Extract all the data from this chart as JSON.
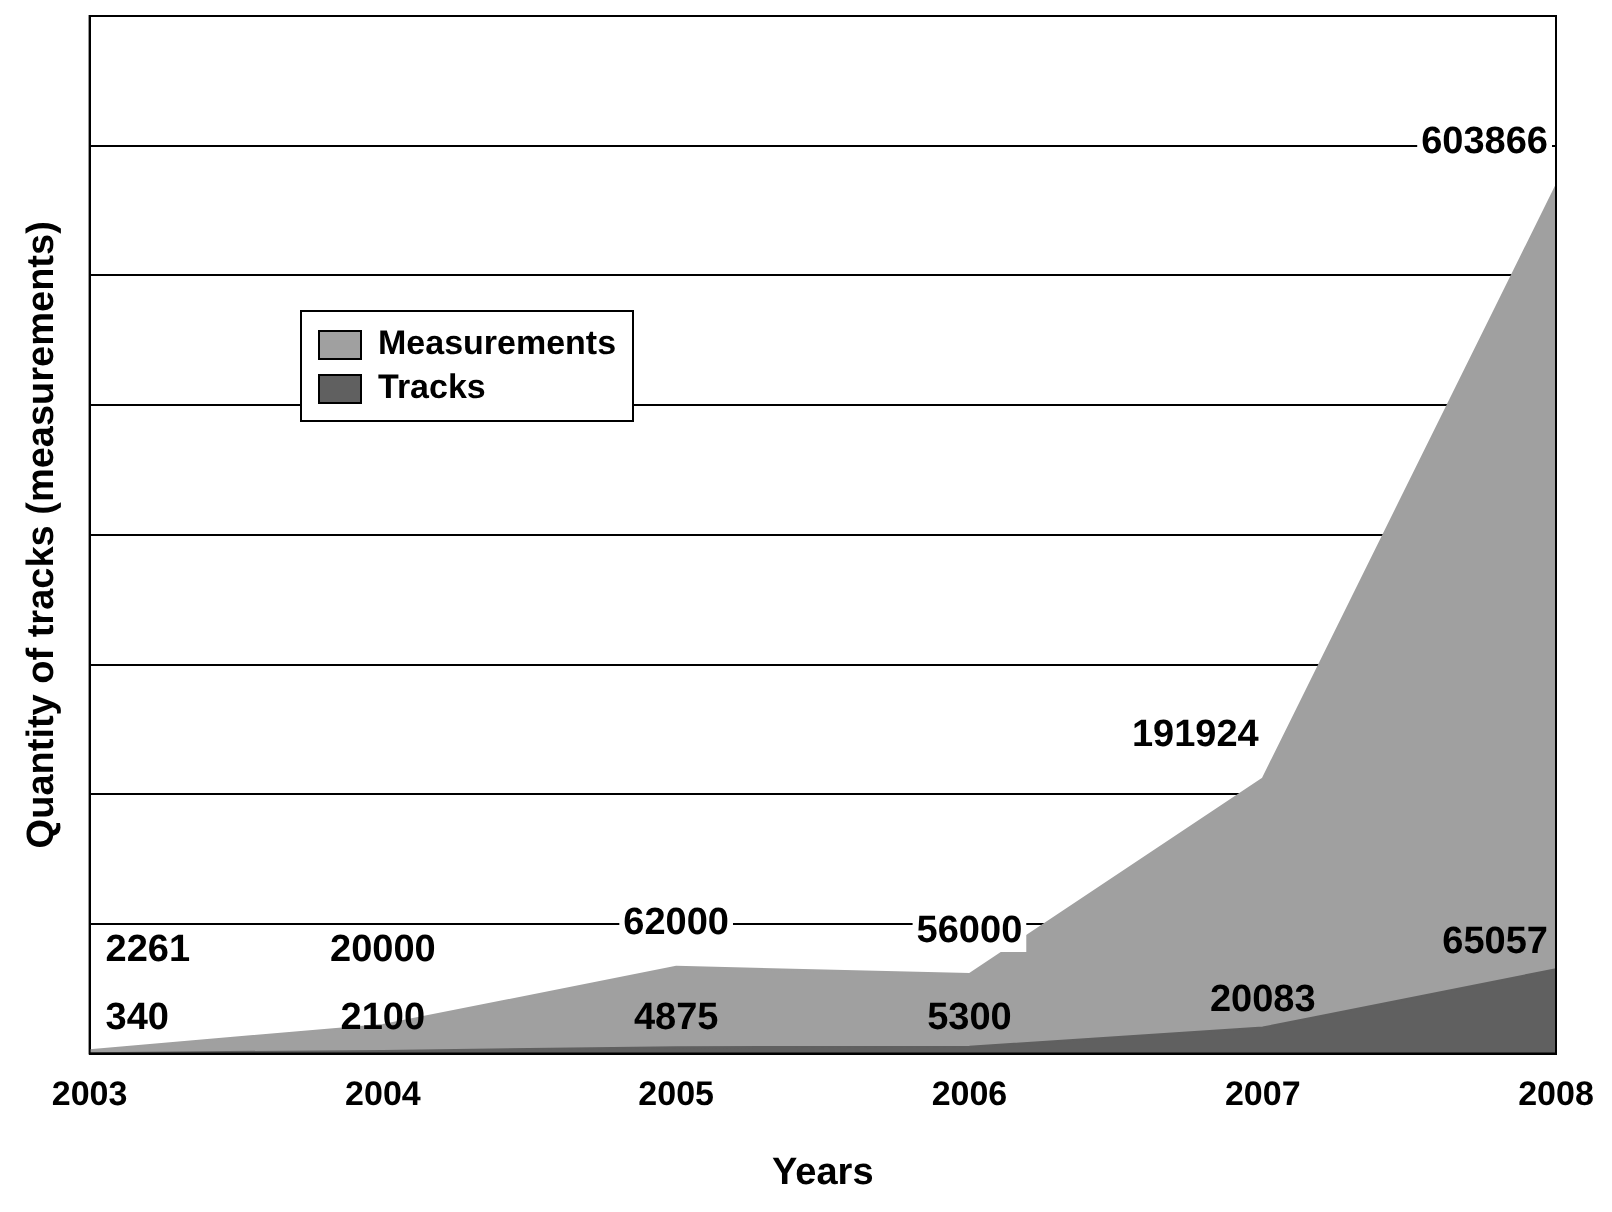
{
  "chart_data": {
    "type": "area",
    "xlabel": "Years",
    "ylabel": "Quantity of tracks (measurements)",
    "categories": [
      "2003",
      "2004",
      "2005",
      "2006",
      "2007",
      "2008"
    ],
    "series": [
      {
        "name": "Tracks",
        "color": "#606060",
        "values": [
          340,
          2100,
          4875,
          5300,
          20083,
          65057
        ]
      },
      {
        "name": "Measurements",
        "color": "#a0a0a0",
        "values": [
          2261,
          20000,
          62000,
          56000,
          191924,
          603866
        ]
      }
    ],
    "stacked": true,
    "data_labels": true,
    "ylim": [
      0,
      800000
    ],
    "yticks": [
      {
        "value": 0,
        "label": null
      },
      {
        "value": 100000,
        "label": null
      },
      {
        "value": 200000,
        "label": null
      },
      {
        "value": 300000,
        "label": null
      },
      {
        "value": 400000,
        "label": null
      },
      {
        "value": 500000,
        "label": null
      },
      {
        "value": 600000,
        "label": null
      },
      {
        "value": 700000,
        "label": null
      },
      {
        "value": 800000,
        "label": null
      }
    ],
    "grid": "y",
    "legend": "left",
    "tick_labels": "x",
    "marker": "none"
  }
}
